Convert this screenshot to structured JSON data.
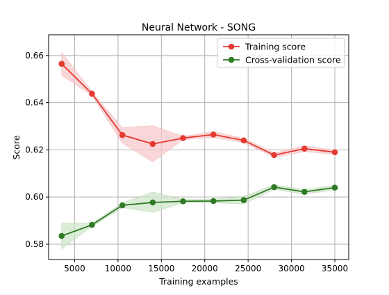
{
  "chart_data": {
    "type": "line",
    "title": "Neural Network - SONG",
    "xlabel": "Training examples",
    "ylabel": "Score",
    "xlim": [
      2000,
      36600
    ],
    "ylim": [
      0.5735,
      0.6688
    ],
    "xticks": [
      5000,
      10000,
      15000,
      20000,
      25000,
      30000,
      35000
    ],
    "xtick_labels": [
      "5000",
      "10000",
      "15000",
      "20000",
      "25000",
      "30000",
      "35000"
    ],
    "yticks": [
      0.58,
      0.6,
      0.62,
      0.64,
      0.66
    ],
    "ytick_labels": [
      "0.58",
      "0.60",
      "0.62",
      "0.64",
      "0.66"
    ],
    "grid": true,
    "legend_position": "top-right",
    "x": [
      3500,
      7000,
      10500,
      14000,
      17500,
      21000,
      24500,
      28000,
      31500,
      35000
    ],
    "series": [
      {
        "name": "Training score",
        "color": "#e53a2f",
        "band_color": "#f7c9cc",
        "values": [
          0.6565,
          0.6438,
          0.6263,
          0.6225,
          0.625,
          0.6265,
          0.624,
          0.6178,
          0.6205,
          0.619
        ],
        "lower": [
          0.6515,
          0.643,
          0.6228,
          0.6148,
          0.6243,
          0.6252,
          0.623,
          0.6168,
          0.6192,
          0.6181
        ],
        "upper": [
          0.6615,
          0.6447,
          0.6295,
          0.6303,
          0.6258,
          0.6278,
          0.625,
          0.6188,
          0.6218,
          0.6199
        ]
      },
      {
        "name": "Cross-validation score",
        "color": "#2f7a24",
        "band_color": "#cfe6c9",
        "values": [
          0.5835,
          0.5882,
          0.5965,
          0.5977,
          0.5982,
          0.5983,
          0.5987,
          0.6042,
          0.6022,
          0.604
        ],
        "lower": [
          0.578,
          0.5875,
          0.5955,
          0.5935,
          0.5975,
          0.5975,
          0.597,
          0.6032,
          0.6012,
          0.603
        ],
        "upper": [
          0.589,
          0.5889,
          0.5975,
          0.6022,
          0.5989,
          0.5991,
          0.6004,
          0.6052,
          0.6032,
          0.605
        ]
      }
    ]
  }
}
